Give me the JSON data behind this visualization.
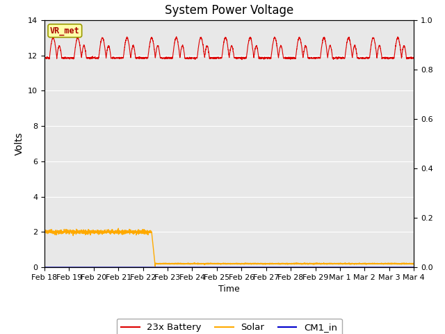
{
  "title": "System Power Voltage",
  "xlabel": "Time",
  "ylabel": "Volts",
  "ylim_left": [
    0,
    14
  ],
  "ylim_right": [
    0.0,
    1.0
  ],
  "yticks_left": [
    0,
    2,
    4,
    6,
    8,
    10,
    12,
    14
  ],
  "yticks_right": [
    0.0,
    0.2,
    0.4,
    0.6,
    0.8,
    1.0
  ],
  "bg_color": "#e8e8e8",
  "fig_color": "#ffffff",
  "annotation_text": "VR_met",
  "annotation_bg": "#ffffaa",
  "annotation_border": "#999900",
  "annotation_text_color": "#aa0000",
  "series": {
    "battery_color": "#dd0000",
    "solar_color": "#ffaa00",
    "cm1_color": "#0000cc"
  },
  "legend": [
    "23x Battery",
    "Solar",
    "CM1_in"
  ],
  "xtick_labels": [
    "Feb 18",
    "Feb 19",
    "Feb 20",
    "Feb 21",
    "Feb 22",
    "Feb 23",
    "Feb 24",
    "Feb 25",
    "Feb 26",
    "Feb 27",
    "Feb 28",
    "Feb 29",
    "Mar 1",
    "Mar 2",
    "Mar 3",
    "Mar 4"
  ],
  "solar_drop_day": 4.35,
  "solar_high": 2.0,
  "solar_low": 0.2,
  "battery_base": 11.85,
  "battery_peak": 1.15
}
